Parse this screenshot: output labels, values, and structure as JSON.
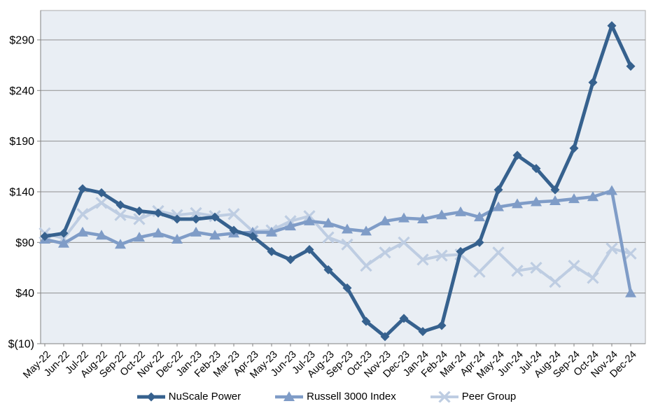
{
  "colors": {
    "background": "#FFFFFF",
    "plot_background": "#E9EEF4",
    "gridline": "#8F8F8F",
    "axis_line": "#808080",
    "axis_text": "#000000"
  },
  "chart_data": {
    "type": "line",
    "title": "",
    "xlabel": "",
    "ylabel": "",
    "grid": "horizontal",
    "legend_position": "bottom",
    "ylim": [
      -10,
      319
    ],
    "y_ticks": [
      {
        "label": "$290",
        "value": 290
      },
      {
        "label": "$240",
        "value": 240
      },
      {
        "label": "$190",
        "value": 190
      },
      {
        "label": "$140",
        "value": 140
      },
      {
        "label": "$90",
        "value": 90
      },
      {
        "label": "$40",
        "value": 40
      },
      {
        "label": "$(10)",
        "value": -10
      }
    ],
    "x_categories": [
      "May-22",
      "Jun-22",
      "Jul-22",
      "Aug-22",
      "Sep-22",
      "Oct-22",
      "Nov-22",
      "Dec-22",
      "Jan-23",
      "Feb-23",
      "Mar-23",
      "Apr-23",
      "May-23",
      "Jun-23",
      "Jul-23",
      "Aug-23",
      "Sep-23",
      "Oct-23",
      "Nov-23",
      "Dec-23",
      "Jan-24",
      "Feb-24",
      "Mar-24",
      "Apr-24",
      "May-24",
      "Jun-24",
      "Jul-24",
      "Aug-24",
      "Sep-24",
      "Oct-24",
      "Nov-24",
      "Dec-24"
    ],
    "series": [
      {
        "name": "NuScale Power",
        "color": "#36618E",
        "marker": "diamond",
        "values": [
          96,
          99,
          143,
          139,
          127,
          121,
          119,
          113,
          113,
          115,
          102,
          96,
          81,
          73,
          83,
          63,
          45,
          12,
          -3,
          15,
          2,
          8,
          81,
          90,
          142,
          176,
          163,
          142,
          183,
          248,
          304,
          264
        ]
      },
      {
        "name": "Russell 3000 Index",
        "color": "#7F9CC7",
        "marker": "triangle",
        "values": [
          93,
          89,
          100,
          97,
          88,
          95,
          99,
          93,
          100,
          97,
          99,
          100,
          100,
          106,
          111,
          109,
          103,
          101,
          111,
          114,
          113,
          117,
          120,
          115,
          125,
          128,
          130,
          131,
          133,
          135,
          141,
          40
        ]
      },
      {
        "name": "Peer Group",
        "color": "#BECDE2",
        "marker": "x",
        "values": [
          99,
          94,
          118,
          129,
          117,
          113,
          121,
          117,
          119,
          116,
          118,
          101,
          102,
          111,
          116,
          95,
          88,
          67,
          80,
          90,
          73,
          77,
          78,
          61,
          80,
          62,
          65,
          51,
          67,
          55,
          84,
          79
        ]
      }
    ]
  }
}
